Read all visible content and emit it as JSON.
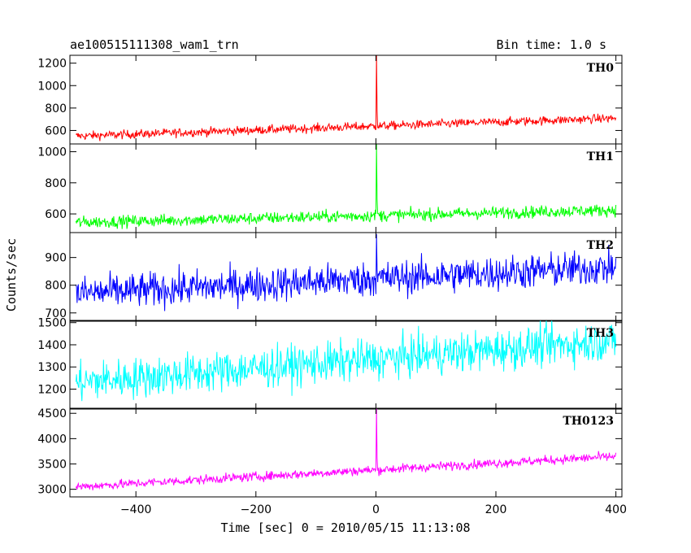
{
  "header": {
    "title": "ae100515111308_wam1_trn",
    "bin_time": "Bin time: 1.0 s"
  },
  "chart_data": {
    "type": "line",
    "title": "ae100515111308_wam1_trn",
    "xlabel": "Time [sec] 0 = 2010/05/15 11:13:08",
    "ylabel": "Counts/sec",
    "xlim": [
      -510,
      410
    ],
    "x_ticks": [
      -400,
      -200,
      0,
      200,
      400
    ],
    "x_tick_labels": [
      "−400",
      "−200",
      "0",
      "200",
      "400"
    ],
    "series": [
      {
        "name": "TH0",
        "color": "#ff0000",
        "ylim": [
          480,
          1270
        ],
        "y_ticks": [
          600,
          800,
          1000,
          1200
        ],
        "trend_start": 550,
        "trend_end": 710,
        "noise": 28,
        "peak_time": 1,
        "peak_value": 1270
      },
      {
        "name": "TH1",
        "color": "#00ff00",
        "ylim": [
          480,
          1050
        ],
        "y_ticks": [
          600,
          800,
          1000
        ],
        "trend_start": 545,
        "trend_end": 625,
        "noise": 28,
        "peak_time": 1,
        "peak_value": 1050
      },
      {
        "name": "TH2",
        "color": "#0000ff",
        "ylim": [
          670,
          990
        ],
        "y_ticks": [
          700,
          800,
          900
        ],
        "trend_start": 770,
        "trend_end": 865,
        "noise": 45,
        "peak_time": 1,
        "peak_value": 985
      },
      {
        "name": "TH3",
        "color": "#00ffff",
        "ylim": [
          1110,
          1510
        ],
        "y_ticks": [
          1200,
          1300,
          1400,
          1500
        ],
        "trend_start": 1230,
        "trend_end": 1420,
        "noise": 65,
        "peak_time": 1,
        "peak_value": 1330
      },
      {
        "name": "TH0123",
        "color": "#ff00ff",
        "ylim": [
          2850,
          4600
        ],
        "y_ticks": [
          3000,
          3500,
          4000,
          4500
        ],
        "trend_start": 3050,
        "trend_end": 3650,
        "noise": 65,
        "peak_time": 1,
        "peak_value": 4600
      }
    ]
  }
}
